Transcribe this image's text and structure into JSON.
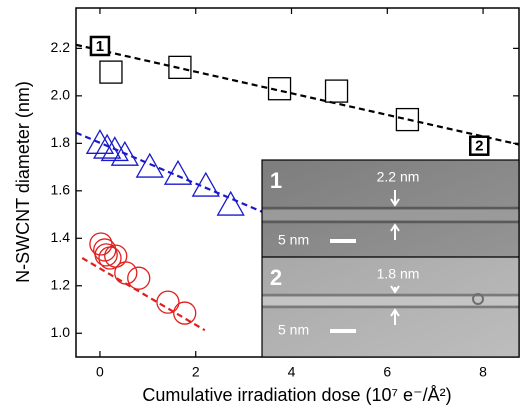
{
  "chart_data": {
    "type": "scatter",
    "xlabel": "Cumulative irradiation dose (10⁷ e⁻/Å²)",
    "ylabel": "N-SWCNT diameter (nm)",
    "xlim": [
      -0.5,
      8.75
    ],
    "ylim": [
      0.9,
      2.37
    ],
    "xticks": [
      0,
      2,
      4,
      6,
      8
    ],
    "yticks": [
      {
        "value": 1.0,
        "label": "1.0"
      },
      1.2,
      1.4,
      1.6,
      1.8,
      {
        "value": 2.0,
        "label": "2.0"
      },
      2.2
    ],
    "series": [
      {
        "marker": "square",
        "color": "#000000",
        "x": [
          0.23,
          1.67,
          3.75,
          4.94,
          6.42
        ],
        "values": [
          2.1,
          2.12,
          2.03,
          2.02,
          1.9
        ]
      },
      {
        "marker": "triangle",
        "color": "#1a1acc",
        "x": [
          0,
          0.15,
          0.31,
          0.52,
          1.04,
          1.63,
          2.21,
          2.73
        ],
        "values": [
          1.8,
          1.78,
          1.77,
          1.75,
          1.7,
          1.67,
          1.62,
          1.54
        ]
      },
      {
        "marker": "circle",
        "color": "#e0201e",
        "x": [
          0.02,
          0.1,
          0.13,
          0.21,
          0.33,
          0.54,
          0.81,
          1.42,
          1.77
        ],
        "values": [
          1.376,
          1.351,
          1.33,
          1.317,
          1.325,
          1.254,
          1.232,
          1.131,
          1.085
        ]
      },
      {
        "style": "dashed",
        "color": "#000000",
        "x": [
          -0.5,
          8.75
        ],
        "values": [
          2.215,
          1.795
        ]
      },
      {
        "style": "dashed",
        "color": "#1a1acc",
        "x": [
          -0.5,
          3.44
        ],
        "values": [
          1.845,
          1.507
        ]
      },
      {
        "style": "dashed",
        "color": "#e0201e",
        "x": [
          -0.37,
          2.19
        ],
        "values": [
          1.317,
          1.013
        ]
      }
    ],
    "annotations": [
      {
        "text": "1",
        "x": 0,
        "y": 2.21
      },
      {
        "text": "2",
        "x": 7.92,
        "y": 1.79
      }
    ]
  },
  "inset": {
    "panels": [
      {
        "number": "1",
        "diameter": "2.2 nm",
        "scale": "5 nm"
      },
      {
        "number": "2",
        "diameter": "1.8 nm",
        "scale": "5 nm"
      }
    ]
  }
}
